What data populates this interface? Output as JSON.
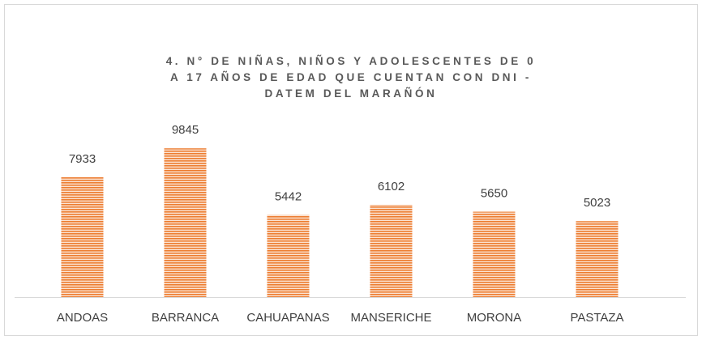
{
  "chart_data": {
    "type": "bar",
    "title": "4. N° DE NIÑAS, NIÑOS Y ADOLESCENTES DE 0 A 17 AÑOS DE EDAD QUE CUENTAN CON DNI - DATEM DEL MARAÑÓN",
    "categories": [
      "ANDOAS",
      "BARRANCA",
      "CAHUAPANAS",
      "MANSERICHE",
      "MORONA",
      "PASTAZA"
    ],
    "values": [
      7933,
      9845,
      5442,
      6102,
      5650,
      5023
    ],
    "color": "#ed7d31",
    "ylim": [
      0,
      12000
    ]
  }
}
